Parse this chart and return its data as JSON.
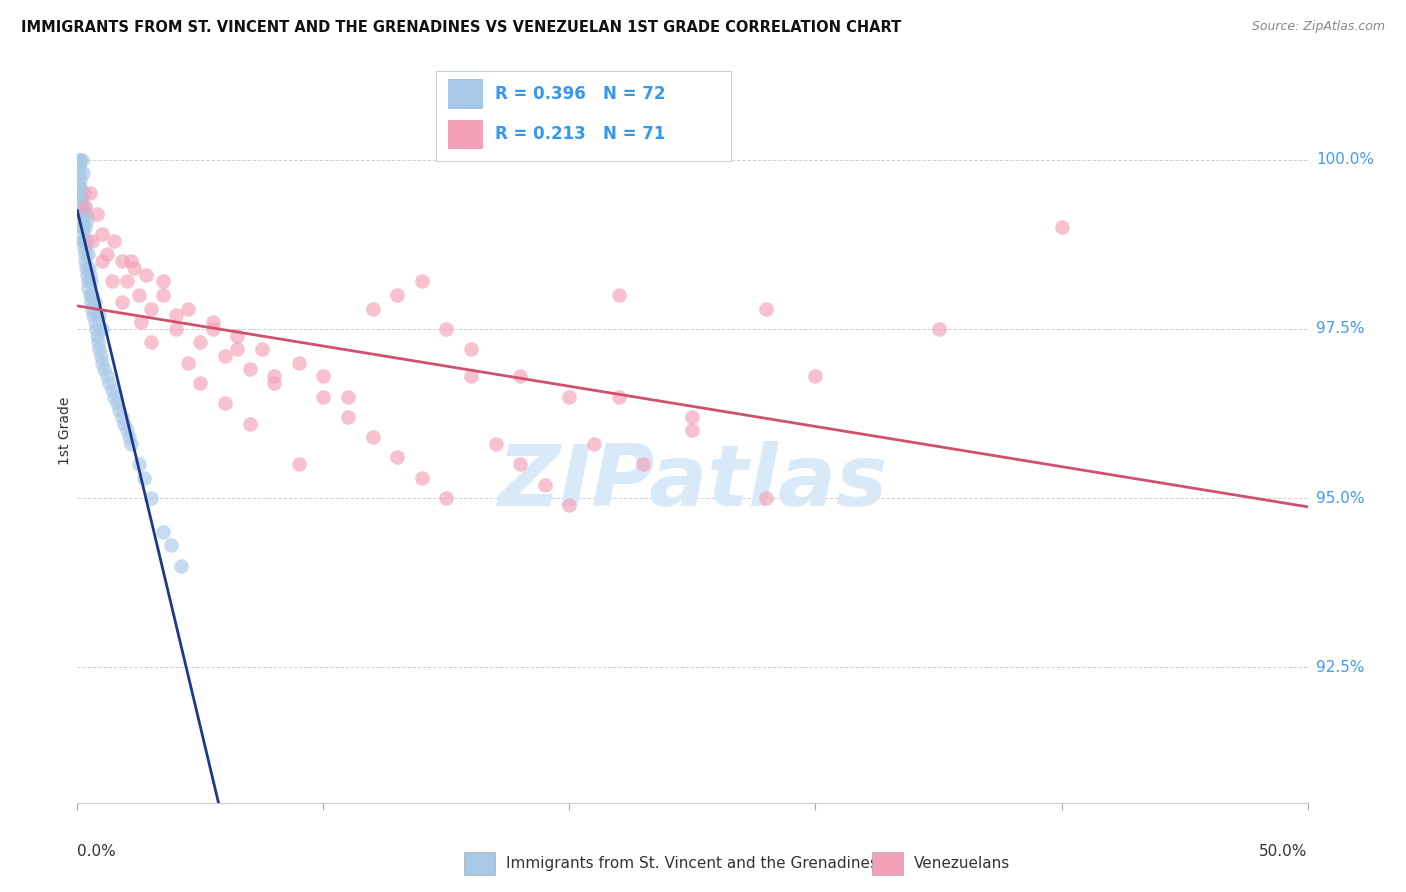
{
  "title": "IMMIGRANTS FROM ST. VINCENT AND THE GRENADINES VS VENEZUELAN 1ST GRADE CORRELATION CHART",
  "source": "Source: ZipAtlas.com",
  "ylabel": "1st Grade",
  "y_ticks": [
    92.5,
    95.0,
    97.5,
    100.0
  ],
  "y_tick_labels": [
    "92.5%",
    "95.0%",
    "97.5%",
    "100.0%"
  ],
  "x_min": 0.0,
  "x_max": 50.0,
  "y_min": 90.5,
  "y_max": 101.5,
  "blue_R": 0.396,
  "blue_N": 72,
  "pink_R": 0.213,
  "pink_N": 71,
  "blue_color": "#a8c8e8",
  "pink_color": "#f4a0b8",
  "blue_line_color": "#1a3a8a",
  "pink_line_color": "#d05070",
  "legend_label_blue": "Immigrants from St. Vincent and the Grenadines",
  "legend_label_pink": "Venezuelans",
  "watermark_color": "#d8eaf8",
  "blue_dots_x": [
    0.05,
    0.05,
    0.08,
    0.1,
    0.1,
    0.12,
    0.12,
    0.15,
    0.15,
    0.18,
    0.2,
    0.2,
    0.22,
    0.22,
    0.25,
    0.25,
    0.28,
    0.28,
    0.3,
    0.3,
    0.3,
    0.32,
    0.35,
    0.35,
    0.38,
    0.4,
    0.4,
    0.42,
    0.45,
    0.45,
    0.48,
    0.5,
    0.5,
    0.55,
    0.55,
    0.6,
    0.6,
    0.65,
    0.7,
    0.7,
    0.75,
    0.8,
    0.85,
    0.9,
    0.9,
    0.95,
    1.0,
    1.0,
    1.1,
    1.2,
    1.3,
    1.4,
    1.5,
    1.6,
    1.7,
    1.8,
    1.9,
    2.0,
    2.1,
    2.2,
    2.5,
    2.7,
    3.0,
    3.5,
    3.8,
    4.2,
    0.05,
    0.08,
    0.1,
    0.15,
    0.2,
    0.25
  ],
  "blue_dots_y": [
    100.0,
    99.8,
    99.9,
    100.0,
    99.7,
    99.6,
    99.5,
    99.4,
    99.3,
    99.2,
    100.0,
    99.1,
    99.0,
    98.9,
    99.8,
    98.8,
    99.5,
    98.7,
    99.3,
    99.0,
    98.6,
    98.5,
    99.2,
    98.4,
    99.1,
    98.8,
    98.3,
    98.2,
    98.6,
    98.1,
    98.4,
    98.3,
    98.0,
    97.9,
    98.2,
    97.8,
    98.0,
    97.7,
    97.6,
    97.9,
    97.5,
    97.4,
    97.3,
    97.2,
    97.7,
    97.1,
    97.0,
    97.5,
    96.9,
    96.8,
    96.7,
    96.6,
    96.5,
    96.4,
    96.3,
    96.2,
    96.1,
    96.0,
    95.9,
    95.8,
    95.5,
    95.3,
    95.0,
    94.5,
    94.3,
    94.0,
    99.6,
    99.5,
    99.4,
    99.2,
    99.0,
    98.8
  ],
  "pink_dots_x": [
    0.5,
    0.8,
    1.0,
    1.2,
    1.5,
    1.8,
    2.0,
    2.3,
    2.5,
    2.8,
    3.0,
    3.5,
    4.0,
    4.5,
    5.0,
    5.5,
    6.0,
    6.5,
    7.0,
    7.5,
    8.0,
    9.0,
    10.0,
    11.0,
    12.0,
    13.0,
    14.0,
    15.0,
    16.0,
    18.0,
    20.0,
    22.0,
    25.0,
    28.0,
    35.0,
    40.0,
    0.3,
    0.6,
    1.0,
    1.4,
    1.8,
    2.2,
    2.6,
    3.0,
    3.5,
    4.0,
    4.5,
    5.0,
    5.5,
    6.0,
    6.5,
    7.0,
    8.0,
    9.0,
    10.0,
    11.0,
    12.0,
    13.0,
    14.0,
    15.0,
    16.0,
    17.0,
    18.0,
    19.0,
    20.0,
    21.0,
    22.0,
    23.0,
    25.0,
    28.0,
    30.0
  ],
  "pink_dots_y": [
    99.5,
    99.2,
    98.9,
    98.6,
    98.8,
    98.5,
    98.2,
    98.4,
    98.0,
    98.3,
    97.8,
    98.2,
    97.5,
    97.8,
    97.3,
    97.6,
    97.1,
    97.4,
    96.9,
    97.2,
    96.7,
    97.0,
    96.8,
    96.5,
    97.8,
    98.0,
    98.2,
    97.5,
    97.2,
    96.8,
    96.5,
    98.0,
    96.0,
    97.8,
    97.5,
    99.0,
    99.3,
    98.8,
    98.5,
    98.2,
    97.9,
    98.5,
    97.6,
    97.3,
    98.0,
    97.7,
    97.0,
    96.7,
    97.5,
    96.4,
    97.2,
    96.1,
    96.8,
    95.5,
    96.5,
    96.2,
    95.9,
    95.6,
    95.3,
    95.0,
    96.8,
    95.8,
    95.5,
    95.2,
    94.9,
    95.8,
    96.5,
    95.5,
    96.2,
    95.0,
    96.8
  ]
}
